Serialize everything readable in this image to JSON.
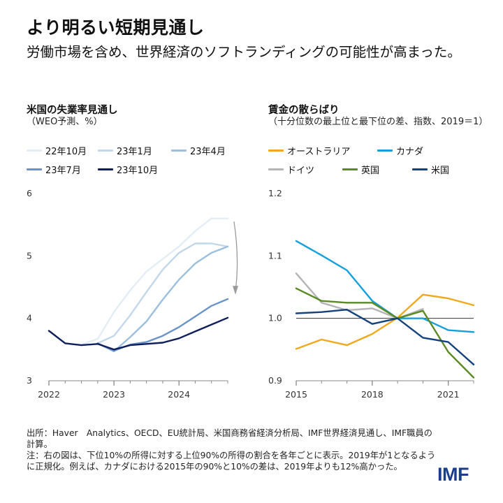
{
  "header": {
    "title": "より明るい短期見通し",
    "subtitle": "労働市場を含め、世界経済のソフトランディングの可能性が高まった。"
  },
  "chart_data": [
    {
      "type": "line",
      "title": "米国の失業率見通し",
      "unit": "（WEO予測、%）",
      "x_ticks": [
        "2022",
        "2023",
        "2024"
      ],
      "y_ticks": [
        "6",
        "5",
        "4",
        "3"
      ],
      "ylim": [
        3,
        6
      ],
      "xlim": [
        2022.0,
        2024.75
      ],
      "series": [
        {
          "name": "22年10月",
          "color": "#e3edf7",
          "x": [
            2022.5,
            2022.75,
            2023.0,
            2023.25,
            2023.5,
            2023.75,
            2024.0,
            2024.25,
            2024.5,
            2024.75
          ],
          "y": [
            3.58,
            3.67,
            4.1,
            4.45,
            4.75,
            4.95,
            5.15,
            5.4,
            5.6,
            5.6
          ]
        },
        {
          "name": "23年1月",
          "color": "#c2d7ea",
          "x": [
            2022.75,
            2023.0,
            2023.25,
            2023.5,
            2023.75,
            2024.0,
            2024.25,
            2024.5,
            2024.75
          ],
          "y": [
            3.6,
            3.72,
            4.05,
            4.42,
            4.78,
            5.05,
            5.2,
            5.2,
            5.15
          ]
        },
        {
          "name": "23年4月",
          "color": "#9bbfde",
          "x": [
            2022.75,
            2023.0,
            2023.25,
            2023.5,
            2023.75,
            2024.0,
            2024.25,
            2024.5,
            2024.75
          ],
          "y": [
            3.6,
            3.47,
            3.7,
            3.95,
            4.3,
            4.62,
            4.88,
            5.05,
            5.15
          ]
        },
        {
          "name": "23年7月",
          "color": "#6a93c8",
          "x": [
            2022.75,
            2023.0,
            2023.25,
            2023.5,
            2023.75,
            2024.0,
            2024.25,
            2024.5,
            2024.75
          ],
          "y": [
            3.6,
            3.48,
            3.58,
            3.62,
            3.72,
            3.86,
            4.03,
            4.2,
            4.31
          ]
        },
        {
          "name": "23年10月",
          "color": "#0e1f5c",
          "x": [
            2022.0,
            2022.25,
            2022.5,
            2022.75,
            2023.0,
            2023.25,
            2023.5,
            2023.75,
            2024.0,
            2024.25,
            2024.5,
            2024.75
          ],
          "y": [
            3.8,
            3.6,
            3.57,
            3.59,
            3.5,
            3.57,
            3.59,
            3.61,
            3.68,
            3.79,
            3.9,
            4.01
          ]
        }
      ],
      "legend_position": "top"
    },
    {
      "type": "line",
      "title": "賃金の散らばり",
      "unit": "（十分位数の最上位と最下位の差、指数、2019＝1）",
      "x_ticks": [
        "2015",
        "2018",
        "2021"
      ],
      "y_ticks": [
        "1.2",
        "1.1",
        "1.0",
        "0.9"
      ],
      "ylim": [
        0.9,
        1.2
      ],
      "xlim": [
        2015,
        2022
      ],
      "reference_line": 1.0,
      "series": [
        {
          "name": "オーストラリア",
          "color": "#f0a81c",
          "x": [
            2015,
            2016,
            2017,
            2018,
            2019,
            2020,
            2021,
            2022
          ],
          "y": [
            0.951,
            0.966,
            0.957,
            0.975,
            1.001,
            1.038,
            1.032,
            1.021
          ]
        },
        {
          "name": "カナダ",
          "color": "#15a0dc",
          "x": [
            2015,
            2016,
            2017,
            2018,
            2019,
            2020,
            2021,
            2022
          ],
          "y": [
            1.124,
            1.101,
            1.077,
            1.028,
            1.0,
            1.0,
            0.981,
            0.978
          ]
        },
        {
          "name": "ドイツ",
          "color": "#b4b4b4",
          "x": [
            2015,
            2016,
            2017,
            2018,
            2019,
            2020
          ],
          "y": [
            1.072,
            1.025,
            1.013,
            1.016,
            1.0,
            1.015
          ]
        },
        {
          "name": "英国",
          "color": "#5a8a22",
          "x": [
            2015,
            2016,
            2017,
            2018,
            2019,
            2020,
            2021,
            2022
          ],
          "y": [
            1.048,
            1.028,
            1.025,
            1.025,
            1.0,
            1.012,
            0.946,
            0.905
          ]
        },
        {
          "name": "米国",
          "color": "#13427d",
          "x": [
            2015,
            2016,
            2017,
            2018,
            2019,
            2020,
            2021,
            2022
          ],
          "y": [
            1.008,
            1.01,
            1.014,
            0.991,
            1.0,
            0.969,
            0.962,
            0.926
          ]
        }
      ],
      "legend_position": "top"
    }
  ],
  "footer": {
    "source": "出所：Haver　Analytics、OECD、EU統計局、米国商務省経済分析局、IMF世界経済見通し、IMF職員の計算。",
    "note": "注：右の図は、下位10%の所得に対する上位90%の所得の割合を各年ごとに表示。2019年が1となるように正規化。例えば、カナダにおける2015年の90%と10%の差は、2019年よりも12%高かった。",
    "logo": "IMF"
  }
}
